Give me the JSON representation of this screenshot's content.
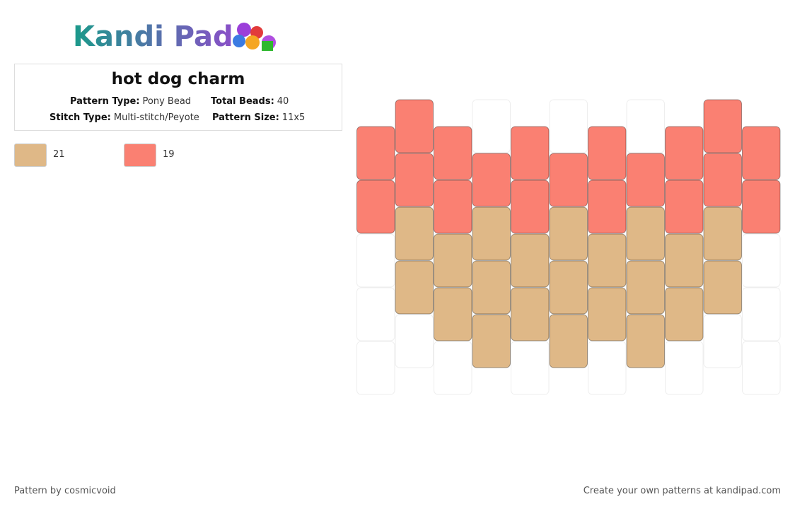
{
  "header": {
    "logo": "Kandi Pad",
    "title": "hot dog charm",
    "fields": [
      {
        "label": "Pattern Type:",
        "value": "Pony Bead"
      },
      {
        "label": "Total Beads:",
        "value": "40"
      },
      {
        "label": "Stitch Type:",
        "value": "Multi-stitch/Peyote"
      },
      {
        "label": "Pattern Size:",
        "value": "11x5"
      }
    ]
  },
  "palette": [
    {
      "color": "#dfb887",
      "count": 21
    },
    {
      "color": "#fa8072",
      "count": 19
    }
  ],
  "pattern": {
    "columns": [
      [
        1,
        1,
        null,
        null,
        null
      ],
      [
        1,
        1,
        0,
        0,
        null
      ],
      [
        1,
        1,
        0,
        0,
        null
      ],
      [
        null,
        1,
        0,
        0,
        0
      ],
      [
        1,
        1,
        0,
        0,
        null
      ],
      [
        null,
        1,
        0,
        0,
        0
      ],
      [
        1,
        1,
        0,
        0,
        null
      ],
      [
        null,
        1,
        0,
        0,
        0
      ],
      [
        1,
        1,
        0,
        0,
        null
      ],
      [
        1,
        1,
        0,
        0,
        null
      ],
      [
        1,
        1,
        null,
        null,
        null
      ]
    ]
  },
  "footer": {
    "author": "Pattern by cosmicvoid",
    "site": "Create your own patterns at kandipad.com"
  }
}
